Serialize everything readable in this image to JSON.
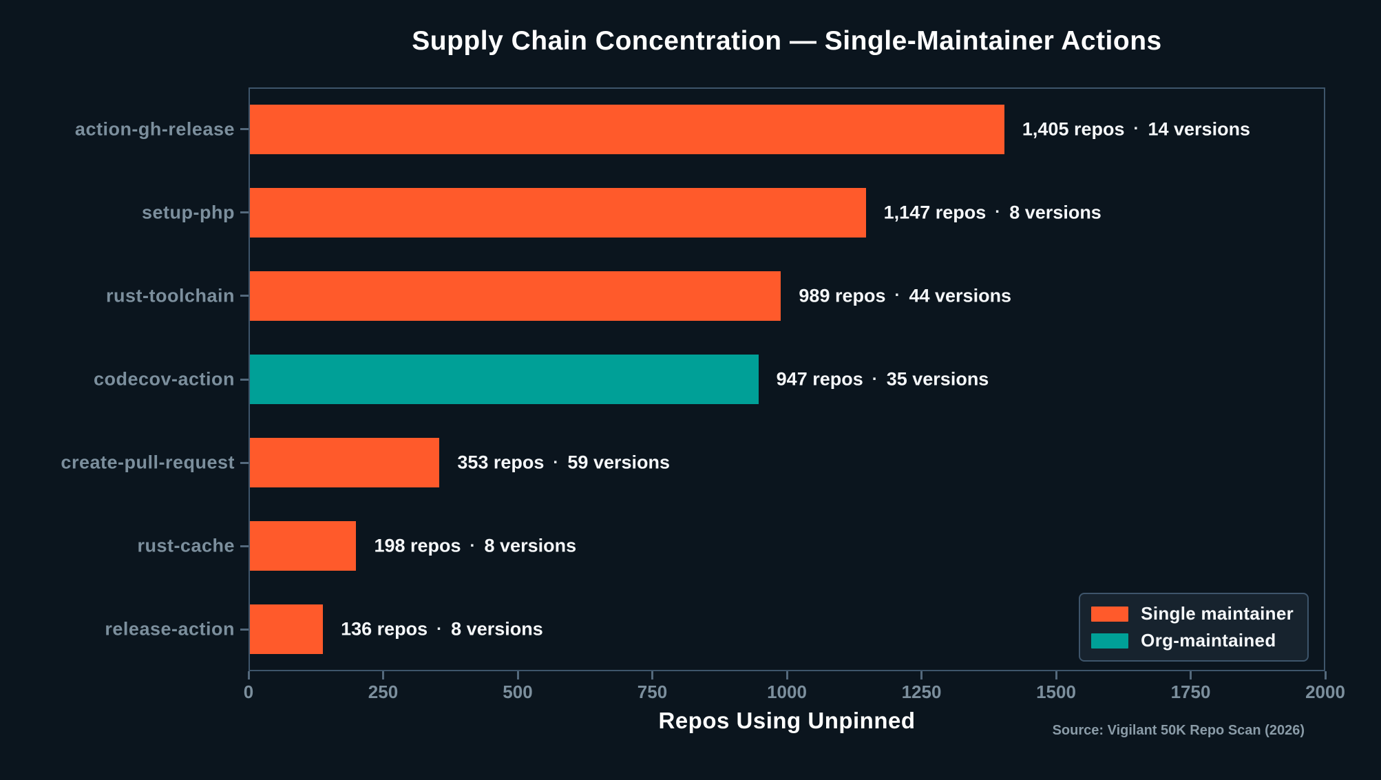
{
  "title": "Supply Chain Concentration — Single-Maintainer Actions",
  "source": "Source: Vigilant 50K Repo Scan (2026)",
  "separator": "·",
  "colors": {
    "background": "#0B151E",
    "single_maintainer": "#FF5A2B",
    "org_maintained": "#00A097",
    "axis_spine": "#3E556B",
    "tick_label": "#7C8F9D",
    "annotation_text": "#F5F7F9"
  },
  "legend": {
    "items": [
      {
        "label": "Single maintainer",
        "color": "#FF5A2B"
      },
      {
        "label": "Org-maintained",
        "color": "#00A097"
      }
    ]
  },
  "chart_data": {
    "type": "bar",
    "orientation": "horizontal",
    "title": "Supply Chain Concentration — Single-Maintainer Actions",
    "xlabel": "Repos Using Unpinned",
    "ylabel": "",
    "xlim": [
      0,
      2000
    ],
    "x_ticks": [
      0,
      250,
      500,
      750,
      1000,
      1250,
      1500,
      1750,
      2000
    ],
    "grid": false,
    "legend_position": "lower right",
    "categories": [
      "action-gh-release",
      "setup-php",
      "rust-toolchain",
      "codecov-action",
      "create-pull-request",
      "rust-cache",
      "release-action"
    ],
    "bars": [
      {
        "category": "action-gh-release",
        "value": 1405,
        "versions": 14,
        "group": "single",
        "repos_label": "1,405 repos",
        "versions_label": "14 versions"
      },
      {
        "category": "setup-php",
        "value": 1147,
        "versions": 8,
        "group": "single",
        "repos_label": "1,147 repos",
        "versions_label": "8 versions"
      },
      {
        "category": "rust-toolchain",
        "value": 989,
        "versions": 44,
        "group": "single",
        "repos_label": "989 repos",
        "versions_label": "44 versions"
      },
      {
        "category": "codecov-action",
        "value": 947,
        "versions": 35,
        "group": "org",
        "repos_label": "947 repos",
        "versions_label": "35 versions"
      },
      {
        "category": "create-pull-request",
        "value": 353,
        "versions": 59,
        "group": "single",
        "repos_label": "353 repos",
        "versions_label": "59 versions"
      },
      {
        "category": "rust-cache",
        "value": 198,
        "versions": 8,
        "group": "single",
        "repos_label": "198 repos",
        "versions_label": "8 versions"
      },
      {
        "category": "release-action",
        "value": 136,
        "versions": 8,
        "group": "single",
        "repos_label": "136 repos",
        "versions_label": "8 versions"
      }
    ],
    "groups": {
      "single": {
        "label": "Single maintainer",
        "color": "#FF5A2B"
      },
      "org": {
        "label": "Org-maintained",
        "color": "#00A097"
      }
    }
  }
}
